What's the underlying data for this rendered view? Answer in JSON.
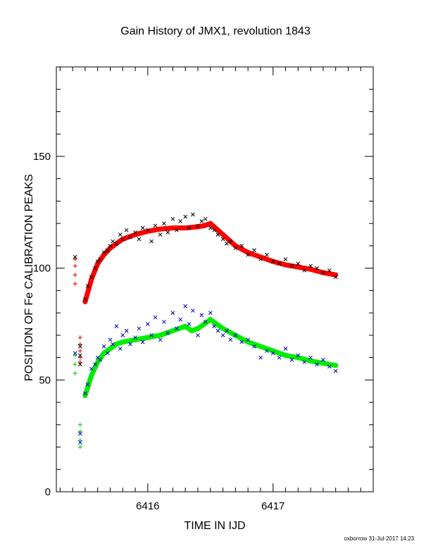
{
  "chart_data": {
    "type": "scatter",
    "title": "Gain History of JMX1, revolution 1843",
    "xlabel": "TIME IN IJD",
    "ylabel": "POSITION OF Fe CALIBRATION PEAKS",
    "xlim": [
      6415.27,
      6417.8
    ],
    "ylim": [
      0,
      190
    ],
    "x_ticks": [
      6416,
      6417
    ],
    "y_ticks": [
      0,
      50,
      100,
      150
    ],
    "grid": false,
    "footer": "oxborrow 31-Jul-2017 14:23",
    "colors": {
      "upper_scatter": "#000000",
      "upper_fit": "#ff0000",
      "lower_scatter": "#0000cc",
      "lower_fit": "#00ee00",
      "early_red": "#cc0000",
      "early_green": "#00bb00"
    },
    "series": [
      {
        "x": [
          6415.5,
          6415.55,
          6415.6,
          6415.65,
          6415.7,
          6415.75,
          6415.8,
          6415.9,
          6416.0,
          6416.1,
          6416.2,
          6416.3,
          6416.4,
          6416.45,
          6416.5,
          6416.6,
          6416.7,
          6416.8,
          6416.9,
          6417.0,
          6417.1,
          6417.2,
          6417.3,
          6417.4,
          6417.5
        ],
        "y": [
          85,
          95,
          102,
          106,
          109,
          111,
          113,
          115,
          116.5,
          117.5,
          118,
          118,
          118.5,
          119,
          120,
          115,
          110,
          107,
          105,
          103,
          101.5,
          100.5,
          99.5,
          98,
          97
        ]
      },
      {
        "x": [
          6415.5,
          6415.55,
          6415.6,
          6415.65,
          6415.7,
          6415.75,
          6415.8,
          6415.9,
          6416.0,
          6416.1,
          6416.2,
          6416.3,
          6416.35,
          6416.4,
          6416.45,
          6416.5,
          6416.6,
          6416.7,
          6416.8,
          6416.9,
          6417.0,
          6417.1,
          6417.2,
          6417.3,
          6417.4,
          6417.5
        ],
        "y": [
          43,
          52,
          58,
          62,
          64,
          66,
          67,
          68,
          69,
          70,
          72,
          74,
          72,
          73,
          75,
          77,
          73,
          70,
          67,
          65,
          63,
          61,
          60,
          58.5,
          57.5,
          56.5
        ]
      },
      {
        "x": [
          6415.5,
          6415.52,
          6415.55,
          6415.58,
          6415.6,
          6415.62,
          6415.65,
          6415.68,
          6415.7,
          6415.72,
          6415.75,
          6415.78,
          6415.8,
          6415.83,
          6415.86,
          6415.9,
          6415.93,
          6415.96,
          6416.0,
          6416.03,
          6416.06,
          6416.1,
          6416.13,
          6416.16,
          6416.2,
          6416.23,
          6416.26,
          6416.3,
          6416.33,
          6416.36,
          6416.4,
          6416.43,
          6416.46,
          6416.5,
          6416.53,
          6416.56,
          6416.6,
          6416.63,
          6416.66,
          6416.7,
          6416.75,
          6416.8,
          6416.85,
          6416.9,
          6416.95,
          6417.0,
          6417.05,
          6417.1,
          6417.15,
          6417.2,
          6417.25,
          6417.3,
          6417.35,
          6417.4,
          6417.45,
          6417.5
        ],
        "y": [
          86,
          92,
          96,
          100,
          103,
          104,
          107,
          108,
          110,
          112,
          111,
          115,
          113,
          117,
          114,
          116,
          113,
          118,
          117,
          112,
          119,
          115,
          120,
          116,
          122,
          117,
          121,
          123,
          118,
          124,
          119,
          121,
          122,
          118,
          117,
          115,
          113,
          111,
          112,
          109,
          110,
          106,
          108,
          104,
          106,
          103,
          102,
          104,
          101,
          102,
          99,
          101,
          100,
          98,
          99,
          96
        ]
      },
      {
        "x": [
          6415.5,
          6415.52,
          6415.55,
          6415.58,
          6415.6,
          6415.62,
          6415.65,
          6415.68,
          6415.7,
          6415.72,
          6415.75,
          6415.78,
          6415.8,
          6415.83,
          6415.86,
          6415.9,
          6415.93,
          6415.96,
          6416.0,
          6416.03,
          6416.06,
          6416.1,
          6416.13,
          6416.16,
          6416.2,
          6416.23,
          6416.26,
          6416.3,
          6416.33,
          6416.36,
          6416.4,
          6416.43,
          6416.46,
          6416.5,
          6416.53,
          6416.56,
          6416.6,
          6416.63,
          6416.66,
          6416.7,
          6416.75,
          6416.8,
          6416.85,
          6416.9,
          6416.95,
          6417.0,
          6417.05,
          6417.1,
          6417.15,
          6417.2,
          6417.25,
          6417.3,
          6417.35,
          6417.4,
          6417.45,
          6417.5
        ],
        "y": [
          44,
          48,
          55,
          57,
          60,
          59,
          65,
          62,
          68,
          66,
          74,
          64,
          70,
          72,
          66,
          69,
          73,
          67,
          75,
          70,
          78,
          68,
          76,
          71,
          80,
          73,
          77,
          83,
          75,
          81,
          70,
          79,
          76,
          80,
          74,
          72,
          70,
          72,
          68,
          70,
          67,
          68,
          65,
          60,
          63,
          62,
          60,
          64,
          59,
          61,
          58,
          60,
          57,
          59,
          56,
          54
        ]
      },
      {
        "x": [
          6415.42,
          6415.42,
          6415.42,
          6415.42,
          6415.46,
          6415.46,
          6415.46,
          6415.46,
          6415.46
        ],
        "y": [
          104,
          101,
          97,
          93,
          69,
          66,
          63,
          60,
          58
        ]
      },
      {
        "x": [
          6415.42,
          6415.42,
          6415.42,
          6415.46,
          6415.46,
          6415.46,
          6415.46
        ],
        "y": [
          61,
          57,
          53,
          30,
          27,
          23,
          20
        ]
      },
      {
        "x": [
          6415.42,
          6415.46,
          6415.46,
          6415.46
        ],
        "y": [
          105,
          65,
          61,
          57
        ]
      },
      {
        "x": [
          6415.42,
          6415.46,
          6415.46
        ],
        "y": [
          62,
          26,
          22
        ]
      }
    ]
  }
}
